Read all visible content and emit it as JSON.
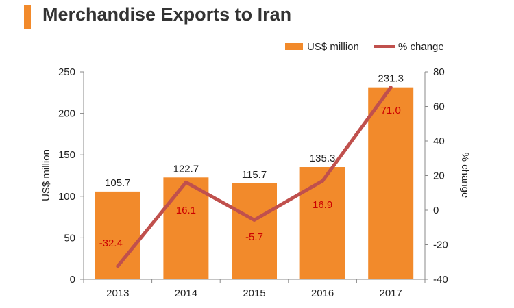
{
  "title": "Merchandise Exports to Iran",
  "colors": {
    "bar": "#f28a2b",
    "line": "#c0504d",
    "title_bar": "#f28a2b",
    "line_label": "#cc0000"
  },
  "chart_data": {
    "type": "bar",
    "title": "Merchandise Exports to Iran",
    "categories": [
      "2013",
      "2014",
      "2015",
      "2016",
      "2017"
    ],
    "series": [
      {
        "name": "US$ million",
        "type": "bar",
        "axis": "left",
        "values": [
          105.7,
          122.7,
          115.7,
          135.3,
          231.3
        ],
        "labels": [
          "105.7",
          "122.7",
          "115.7",
          "135.3",
          "231.3"
        ]
      },
      {
        "name": "% change",
        "type": "line",
        "axis": "right",
        "values": [
          -32.4,
          16.1,
          -5.7,
          16.9,
          71.0
        ],
        "labels": [
          "-32.4",
          "16.1",
          "-5.7",
          "16.9",
          "71.0"
        ]
      }
    ],
    "ylabel": "US$ million",
    "ylim": [
      0,
      250
    ],
    "yticks": [
      "0",
      "50",
      "100",
      "150",
      "200",
      "250"
    ],
    "y2label": "% change",
    "y2lim": [
      -40,
      80
    ],
    "y2ticks": [
      "-40",
      "-20",
      "0",
      "20",
      "40",
      "60",
      "80"
    ],
    "grid": false,
    "legend": "top-right"
  }
}
